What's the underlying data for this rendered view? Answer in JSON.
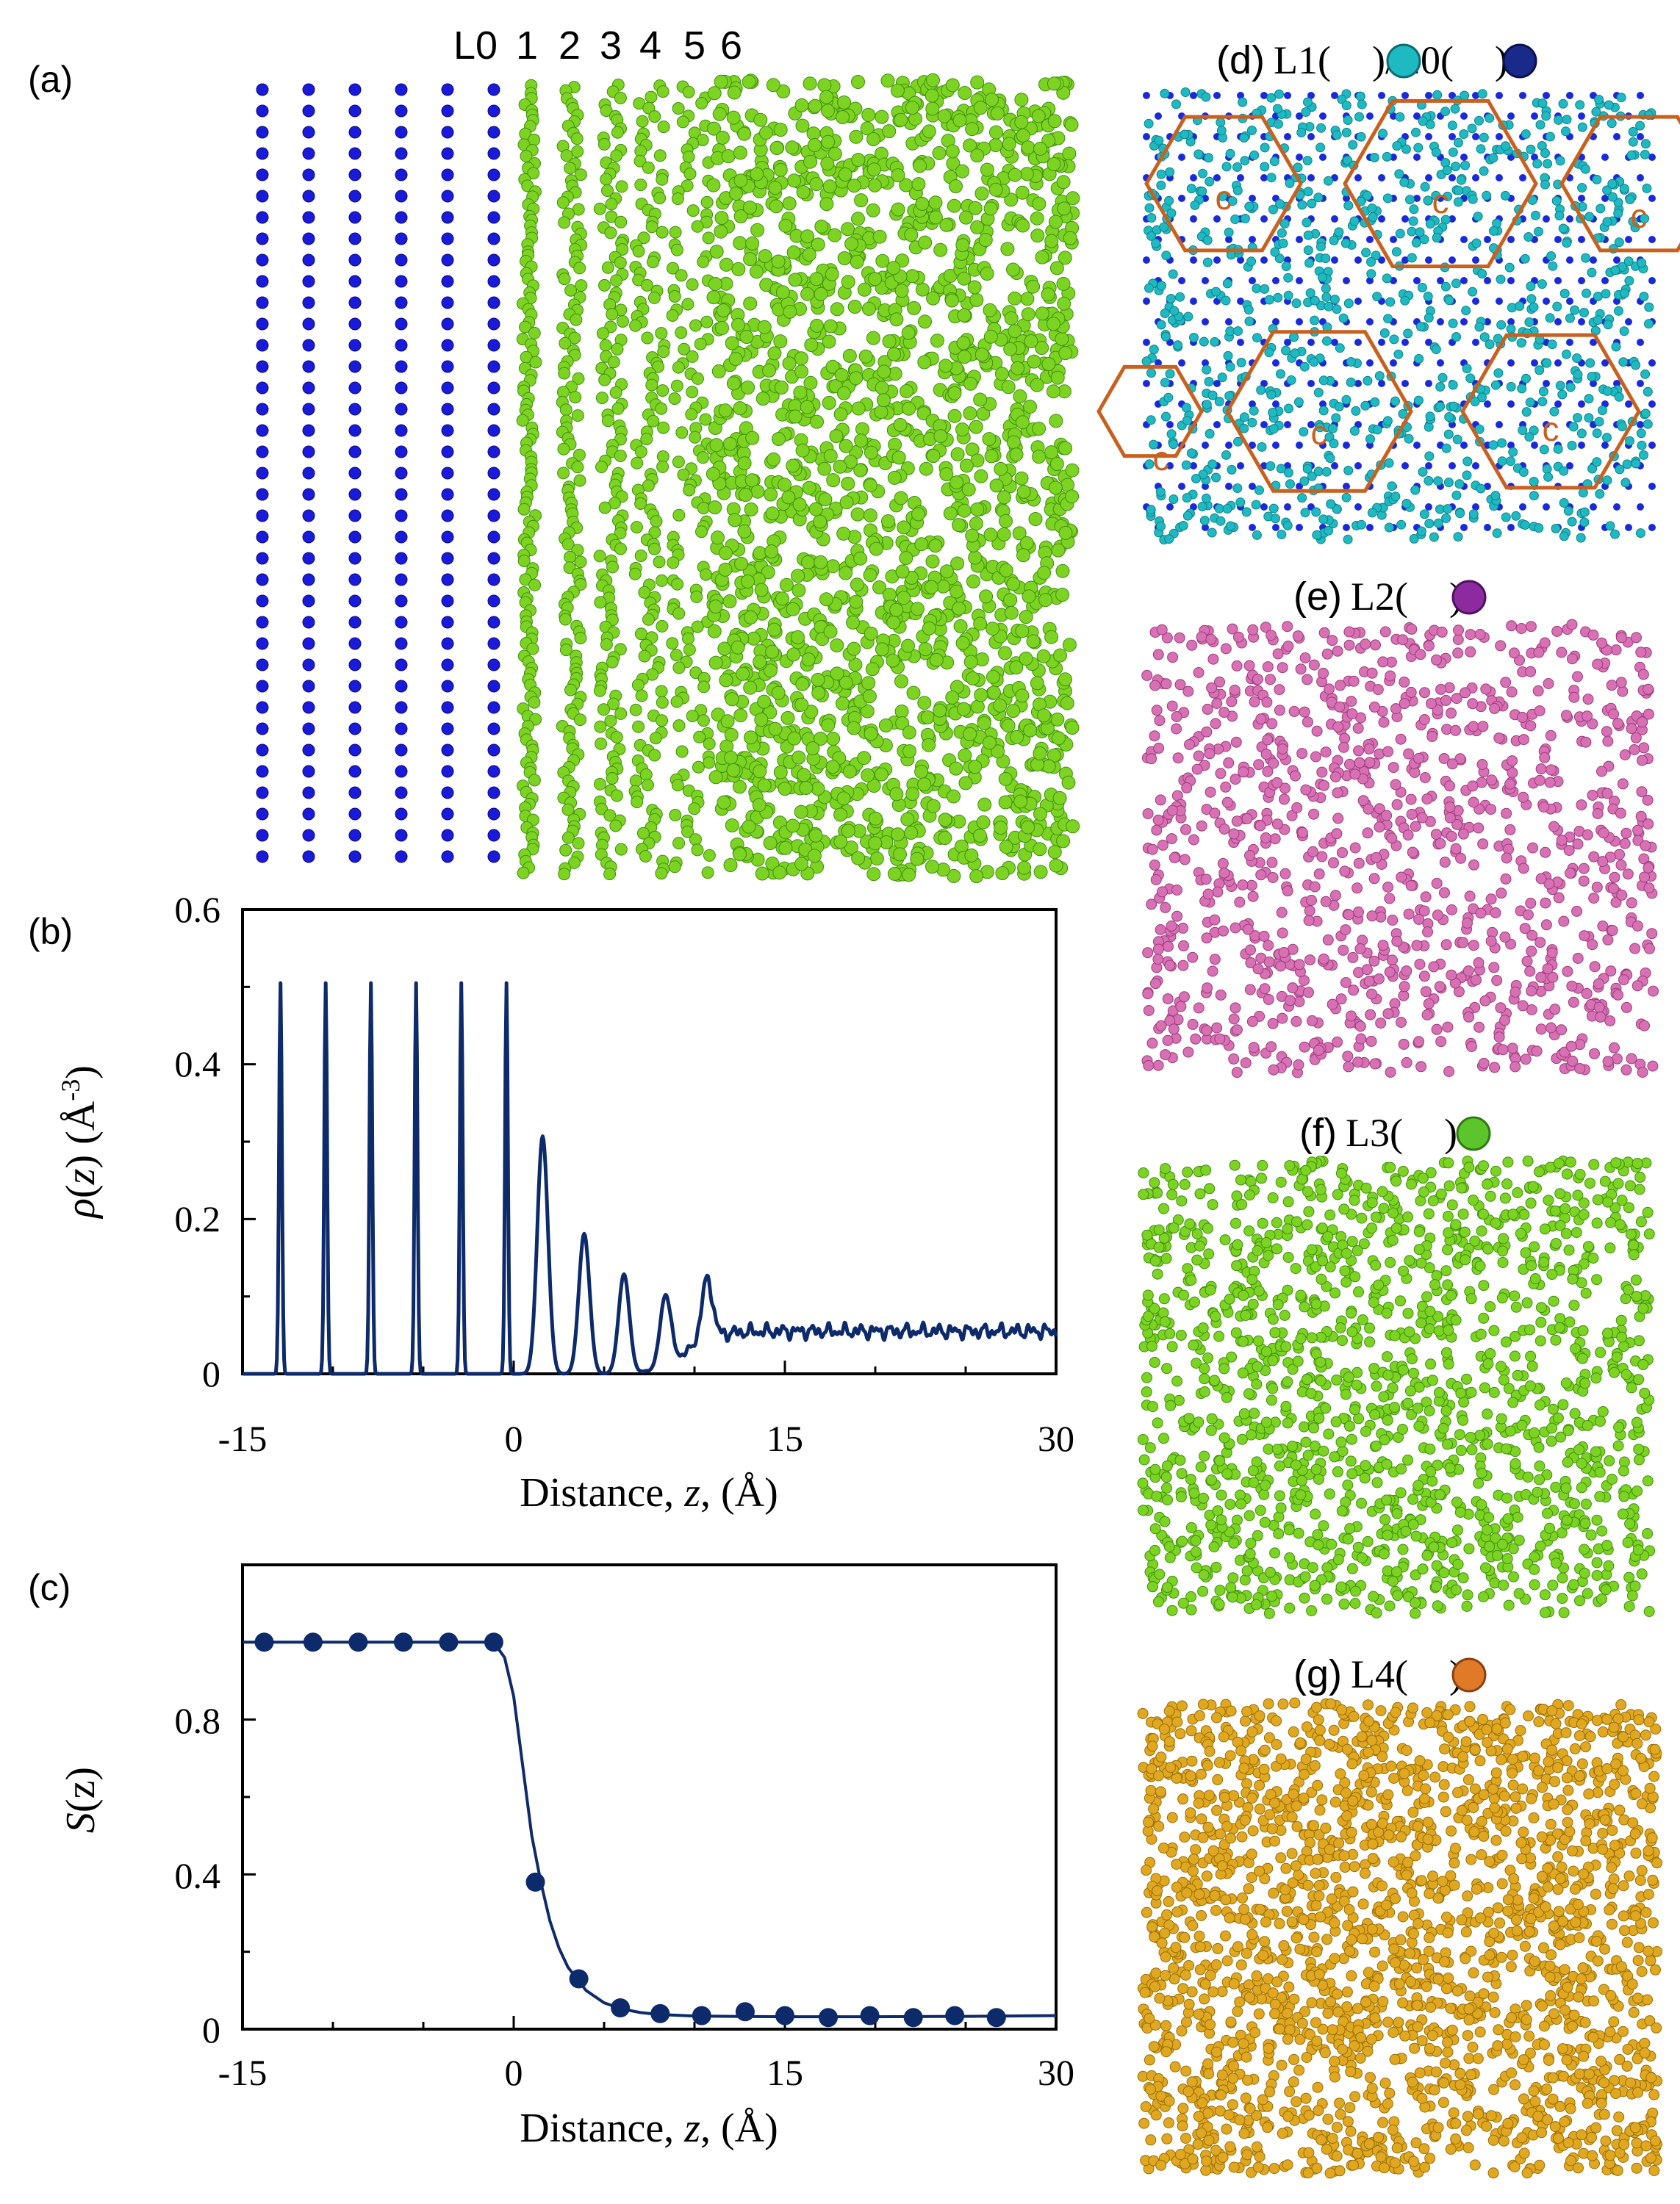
{
  "panels": {
    "a": {
      "label": "(a)",
      "layer_labels": [
        "L0",
        "1",
        "2",
        "3",
        "4",
        "5",
        "6"
      ],
      "substrate_color": "#1a1adb",
      "liquid_color": "#7dd321"
    },
    "d": {
      "label": "(d)",
      "title_a": "L1(",
      "title_b": ")/L0(",
      "title_c": ")",
      "cell_label": "c",
      "colors": [
        "#1fb9c2",
        "#1a2adb",
        "#c9601e"
      ]
    },
    "e": {
      "label": "(e)",
      "title_a": "L2(",
      "title_c": ")",
      "colors": [
        "#d870b4"
      ]
    },
    "f": {
      "label": "(f)",
      "title_a": "L3(",
      "title_c": ")",
      "colors": [
        "#7dd321"
      ]
    },
    "g": {
      "label": "(g)",
      "title_a": "L4(",
      "title_c": ")",
      "colors": [
        "#e0a820"
      ]
    }
  },
  "chart_data": [
    {
      "panel": "(b)",
      "type": "line",
      "xlabel_prefix": "Distance, ",
      "xlabel_var": "z",
      "xlabel_suffix": ", (Å)",
      "ylabel_rho": "ρ",
      "ylabel_open": "(",
      "ylabel_var": "z",
      "ylabel_close": ") (Å",
      "ylabel_sup": "-3",
      "ylabel_end": ")",
      "xlim": [
        -15,
        30
      ],
      "ylim": [
        0,
        0.6
      ],
      "xticks": [
        "-15",
        "0",
        "15",
        "30"
      ],
      "yticks": [
        "0",
        "0.2",
        "0.4",
        "0.6"
      ],
      "color": "#0d2a6b",
      "substrate_peaks": {
        "z": [
          -12.9,
          -10.4,
          -7.9,
          -5.4,
          -2.9,
          -0.4
        ],
        "height": 0.505
      },
      "liquid_peaks": [
        {
          "z": 1.6,
          "height": 0.307
        },
        {
          "z": 3.9,
          "height": 0.181
        },
        {
          "z": 6.1,
          "height": 0.128
        },
        {
          "z": 8.4,
          "height": 0.092
        },
        {
          "z": 10.7,
          "height": 0.078
        }
      ],
      "bulk_level": 0.055
    },
    {
      "panel": "(c)",
      "type": "scatter",
      "xlabel_prefix": "Distance, ",
      "xlabel_var": "z",
      "xlabel_suffix": ", (Å)",
      "ylabel_S": "S",
      "ylabel_rest": "(z)",
      "xlim": [
        -15,
        30
      ],
      "ylim": [
        0,
        1.2
      ],
      "xticks": [
        "-15",
        "0",
        "15",
        "30"
      ],
      "yticks": [
        "0",
        "0.4",
        "0.8"
      ],
      "color": "#0d2a6b",
      "points": {
        "x": [
          -13.8,
          -11.1,
          -8.6,
          -6.1,
          -3.6,
          -1.1,
          1.2,
          3.6,
          5.9,
          8.1,
          10.4,
          12.8,
          15.0,
          17.4,
          19.7,
          22.1,
          24.4,
          26.7
        ],
        "y": [
          1.0,
          1.0,
          1.0,
          1.0,
          1.0,
          1.0,
          0.38,
          0.13,
          0.055,
          0.04,
          0.035,
          0.045,
          0.035,
          0.03,
          0.035,
          0.03,
          0.035,
          0.03
        ]
      },
      "fit": {
        "x": [
          -15,
          -1.1,
          -0.5,
          0,
          0.5,
          1.0,
          1.5,
          2,
          2.5,
          3,
          4,
          5,
          6,
          7,
          8,
          10,
          12,
          15,
          20,
          25,
          30
        ],
        "y": [
          1.0,
          1.0,
          0.96,
          0.86,
          0.68,
          0.5,
          0.38,
          0.28,
          0.21,
          0.16,
          0.1,
          0.068,
          0.052,
          0.043,
          0.038,
          0.034,
          0.033,
          0.032,
          0.032,
          0.033,
          0.035
        ]
      }
    }
  ]
}
